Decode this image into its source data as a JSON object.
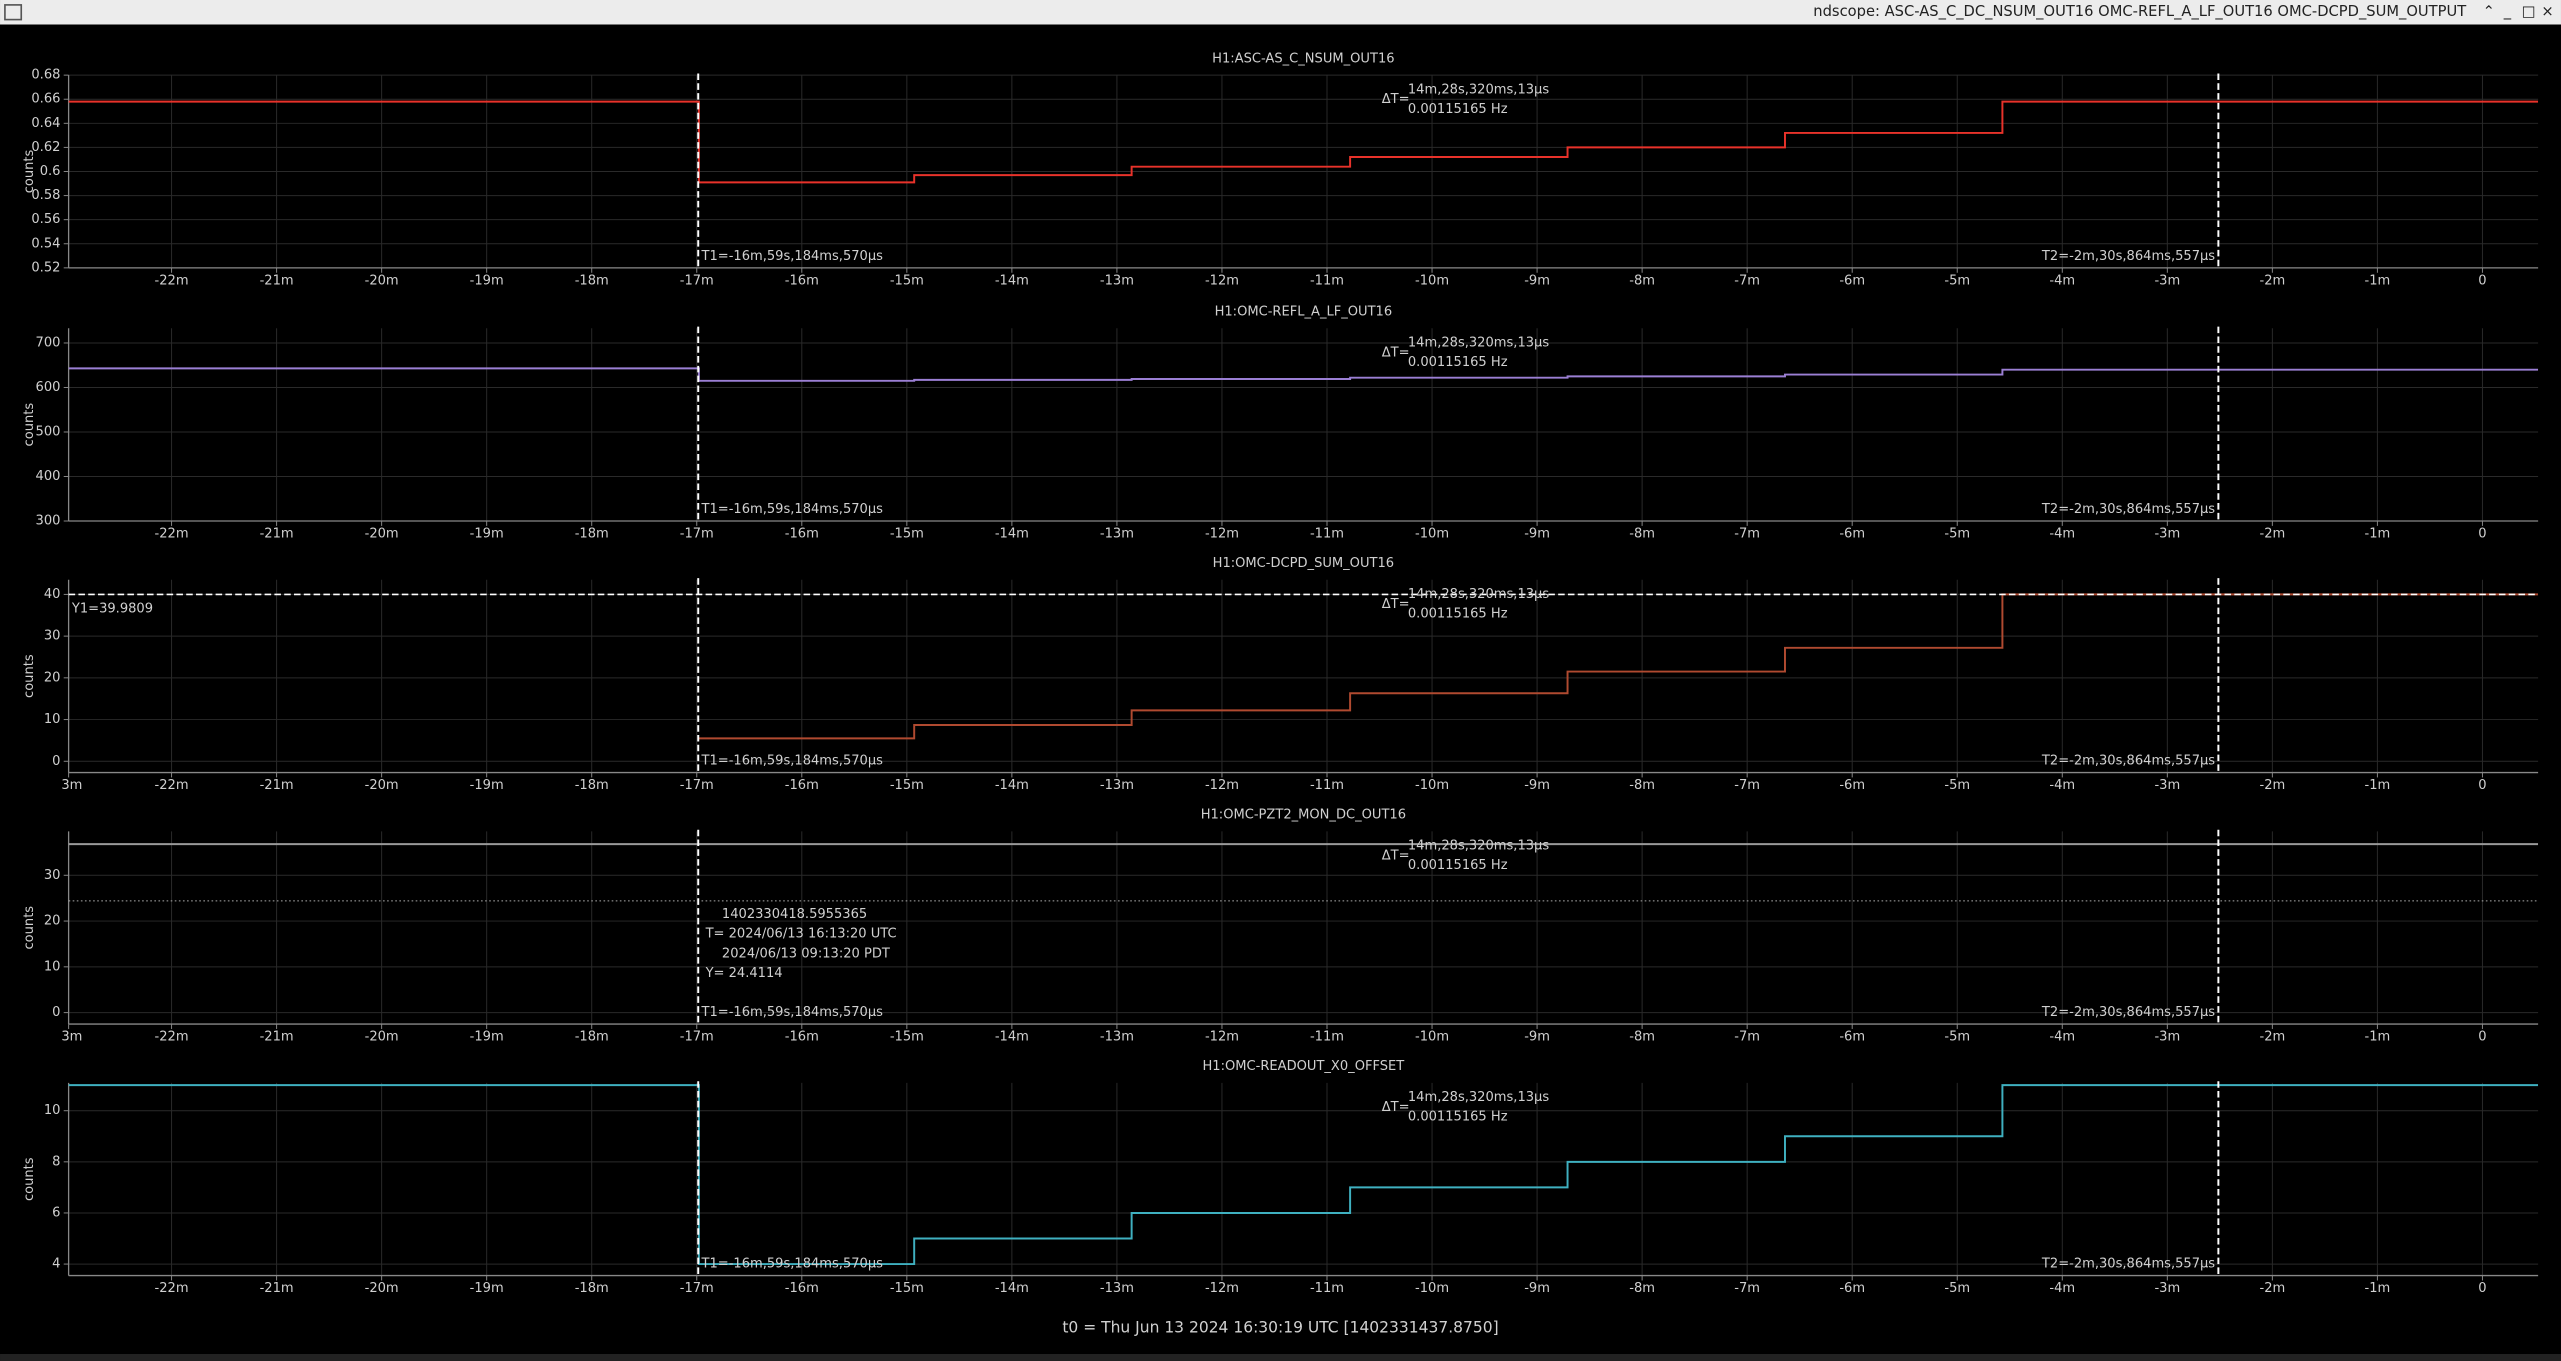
{
  "window_title": "ndscope: ASC-AS_C_DC_NSUM_OUT16 OMC-REFL_A_LF_OUT16 OMC-DCPD_SUM_OUTPUT",
  "t0_label": "t0 = Thu Jun 13 2024 16:30:19 UTC [1402331437.8750]",
  "chart_data": [
    {
      "type": "line",
      "title": "H1:ASC-AS_C_NSUM_OUT16",
      "ylabel": "counts",
      "color": "#e8322a",
      "grid": true,
      "xlim": [
        -22.98,
        0.53
      ],
      "xticks": [
        {
          "value": -22,
          "label": "-22m"
        },
        {
          "value": -21,
          "label": "-21m"
        },
        {
          "value": -20,
          "label": "-20m"
        },
        {
          "value": -19,
          "label": "-19m"
        },
        {
          "value": -18,
          "label": "-18m"
        },
        {
          "value": -17,
          "label": "-17m"
        },
        {
          "value": -16,
          "label": "-16m"
        },
        {
          "value": -15,
          "label": "-15m"
        },
        {
          "value": -14,
          "label": "-14m"
        },
        {
          "value": -13,
          "label": "-13m"
        },
        {
          "value": -12,
          "label": "-12m"
        },
        {
          "value": -11,
          "label": "-11m"
        },
        {
          "value": -10,
          "label": "-10m"
        },
        {
          "value": -9,
          "label": "-9m"
        },
        {
          "value": -8,
          "label": "-8m"
        },
        {
          "value": -7,
          "label": "-7m"
        },
        {
          "value": -6,
          "label": "-6m"
        },
        {
          "value": -5,
          "label": "-5m"
        },
        {
          "value": -4,
          "label": "-4m"
        },
        {
          "value": -3,
          "label": "-3m"
        },
        {
          "value": -2,
          "label": "-2m"
        },
        {
          "value": -1,
          "label": "-1m"
        },
        0
      ],
      "ylim": [
        0.52,
        0.68
      ],
      "yticks": [
        0.52,
        0.54,
        0.56,
        0.58,
        0.6,
        0.62,
        0.64,
        0.66,
        0.68
      ],
      "x": [
        -22.98,
        -16.98,
        -16.98,
        -14.93,
        -14.93,
        -12.86,
        -12.86,
        -10.78,
        -10.78,
        -8.71,
        -8.71,
        -6.64,
        -6.64,
        -4.57,
        -4.57,
        0.53
      ],
      "values": [
        0.658,
        0.658,
        0.591,
        0.591,
        0.597,
        0.597,
        0.604,
        0.604,
        0.612,
        0.612,
        0.62,
        0.62,
        0.632,
        0.632,
        0.658,
        0.658
      ],
      "cursors": {
        "t1": -16.986,
        "t1_label": "T1=-16m,59s,184ms,570μs",
        "t2": -2.514,
        "t2_label": "T2=-2m,30s,864ms,557μs",
        "delta_label": "ΔT=",
        "delta_time": "14m,28s,320ms,13μs",
        "delta_freq": "0.00115165 Hz"
      }
    },
    {
      "type": "line",
      "title": "H1:OMC-REFL_A_LF_OUT16",
      "ylabel": "counts",
      "color": "#9b7fd4",
      "grid": true,
      "xlim": [
        -22.98,
        0.53
      ],
      "xticks": [
        {
          "value": -22,
          "label": "-22m"
        },
        {
          "value": -21,
          "label": "-21m"
        },
        {
          "value": -20,
          "label": "-20m"
        },
        {
          "value": -19,
          "label": "-19m"
        },
        {
          "value": -18,
          "label": "-18m"
        },
        {
          "value": -17,
          "label": "-17m"
        },
        {
          "value": -16,
          "label": "-16m"
        },
        {
          "value": -15,
          "label": "-15m"
        },
        {
          "value": -14,
          "label": "-14m"
        },
        {
          "value": -13,
          "label": "-13m"
        },
        {
          "value": -12,
          "label": "-12m"
        },
        {
          "value": -11,
          "label": "-11m"
        },
        {
          "value": -10,
          "label": "-10m"
        },
        {
          "value": -9,
          "label": "-9m"
        },
        {
          "value": -8,
          "label": "-8m"
        },
        {
          "value": -7,
          "label": "-7m"
        },
        {
          "value": -6,
          "label": "-6m"
        },
        {
          "value": -5,
          "label": "-5m"
        },
        {
          "value": -4,
          "label": "-4m"
        },
        {
          "value": -3,
          "label": "-3m"
        },
        {
          "value": -2,
          "label": "-2m"
        },
        {
          "value": -1,
          "label": "-1m"
        },
        0
      ],
      "ylim": [
        300,
        733
      ],
      "yticks": [
        300,
        400,
        500,
        600,
        700
      ],
      "x": [
        -22.98,
        -16.98,
        -16.98,
        -14.93,
        -14.93,
        -12.86,
        -12.86,
        -10.78,
        -10.78,
        -8.71,
        -8.71,
        -6.64,
        -6.64,
        -4.57,
        -4.57,
        0.53
      ],
      "values": [
        643,
        643,
        615,
        615,
        617,
        617,
        619,
        619,
        622,
        622,
        625,
        625,
        629,
        629,
        640,
        640
      ],
      "cursors": {
        "t1": -16.986,
        "t1_label": "T1=-16m,59s,184ms,570μs",
        "t2": -2.514,
        "t2_label": "T2=-2m,30s,864ms,557μs",
        "delta_label": "ΔT=",
        "delta_time": "14m,28s,320ms,13μs",
        "delta_freq": "0.00115165 Hz"
      }
    },
    {
      "type": "line",
      "title": "H1:OMC-DCPD_SUM_OUT16",
      "ylabel": "counts",
      "color": "#b04a30",
      "grid": true,
      "xlim": [
        -22.98,
        0.53
      ],
      "xticks": [
        {
          "value": -23,
          "label": "3m"
        },
        {
          "value": -22,
          "label": "-22m"
        },
        {
          "value": -21,
          "label": "-21m"
        },
        {
          "value": -20,
          "label": "-20m"
        },
        {
          "value": -19,
          "label": "-19m"
        },
        {
          "value": -18,
          "label": "-18m"
        },
        {
          "value": -17,
          "label": "-17m"
        },
        {
          "value": -16,
          "label": "-16m"
        },
        {
          "value": -15,
          "label": "-15m"
        },
        {
          "value": -14,
          "label": "-14m"
        },
        {
          "value": -13,
          "label": "-13m"
        },
        {
          "value": -12,
          "label": "-12m"
        },
        {
          "value": -11,
          "label": "-11m"
        },
        {
          "value": -10,
          "label": "-10m"
        },
        {
          "value": -9,
          "label": "-9m"
        },
        {
          "value": -8,
          "label": "-8m"
        },
        {
          "value": -7,
          "label": "-7m"
        },
        {
          "value": -6,
          "label": "-6m"
        },
        {
          "value": -5,
          "label": "-5m"
        },
        {
          "value": -4,
          "label": "-4m"
        },
        {
          "value": -3,
          "label": "-3m"
        },
        {
          "value": -2,
          "label": "-2m"
        },
        {
          "value": -1,
          "label": "-1m"
        },
        0
      ],
      "ylim": [
        -2.7,
        43.5
      ],
      "yticks": [
        0,
        10,
        20,
        30,
        40
      ],
      "x": [
        -16.98,
        -14.93,
        -14.93,
        -12.86,
        -12.86,
        -10.78,
        -10.78,
        -8.71,
        -8.71,
        -6.64,
        -6.64,
        -4.57,
        -4.57,
        0.53
      ],
      "values": [
        5.5,
        5.5,
        8.7,
        8.7,
        12.2,
        12.2,
        16.3,
        16.3,
        21.5,
        21.5,
        27.2,
        27.2,
        40,
        40
      ],
      "y1": 39.9809,
      "y1_label": "Y1=39.9809",
      "cursors": {
        "t1": -16.986,
        "t1_label": "T1=-16m,59s,184ms,570μs",
        "t2": -2.514,
        "t2_label": "T2=-2m,30s,864ms,557μs",
        "delta_label": "ΔT=",
        "delta_time": "14m,28s,320ms,13μs",
        "delta_freq": "0.00115165 Hz"
      }
    },
    {
      "type": "line",
      "title": "H1:OMC-PZT2_MON_DC_OUT16",
      "ylabel": "counts",
      "color": "#9a9a9a",
      "grid": true,
      "xlim": [
        -22.98,
        0.53
      ],
      "xticks": [
        {
          "value": -23,
          "label": "3m"
        },
        {
          "value": -22,
          "label": "-22m"
        },
        {
          "value": -21,
          "label": "-21m"
        },
        {
          "value": -20,
          "label": "-20m"
        },
        {
          "value": -19,
          "label": "-19m"
        },
        {
          "value": -18,
          "label": "-18m"
        },
        {
          "value": -17,
          "label": "-17m"
        },
        {
          "value": -16,
          "label": "-16m"
        },
        {
          "value": -15,
          "label": "-15m"
        },
        {
          "value": -14,
          "label": "-14m"
        },
        {
          "value": -13,
          "label": "-13m"
        },
        {
          "value": -12,
          "label": "-12m"
        },
        {
          "value": -11,
          "label": "-11m"
        },
        {
          "value": -10,
          "label": "-10m"
        },
        {
          "value": -9,
          "label": "-9m"
        },
        {
          "value": -8,
          "label": "-8m"
        },
        {
          "value": -7,
          "label": "-7m"
        },
        {
          "value": -6,
          "label": "-6m"
        },
        {
          "value": -5,
          "label": "-5m"
        },
        {
          "value": -4,
          "label": "-4m"
        },
        {
          "value": -3,
          "label": "-3m"
        },
        {
          "value": -2,
          "label": "-2m"
        },
        {
          "value": -1,
          "label": "-1m"
        },
        0
      ],
      "ylim": [
        -2.5,
        39.6
      ],
      "yticks": [
        0,
        10,
        20,
        30
      ],
      "x": [
        -22.98,
        0.53
      ],
      "values": [
        36.8,
        36.8
      ],
      "crosshair": {
        "y": 24.4114,
        "gps": "1402330418.5955365",
        "utc": "T= 2024/06/13 16:13:20 UTC",
        "local": "2024/06/13 09:13:20 PDT",
        "y_label": "Y= 24.4114"
      },
      "cursors": {
        "t1": -16.986,
        "t1_label": "T1=-16m,59s,184ms,570μs",
        "t2": -2.514,
        "t2_label": "T2=-2m,30s,864ms,557μs",
        "delta_label": "ΔT=",
        "delta_time": "14m,28s,320ms,13μs",
        "delta_freq": "0.00115165 Hz"
      }
    },
    {
      "type": "line",
      "title": "H1:OMC-READOUT_X0_OFFSET",
      "ylabel": "counts",
      "color": "#3fb0c0",
      "grid": true,
      "xlim": [
        -22.98,
        0.53
      ],
      "xticks": [
        {
          "value": -22,
          "label": "-22m"
        },
        {
          "value": -21,
          "label": "-21m"
        },
        {
          "value": -20,
          "label": "-20m"
        },
        {
          "value": -19,
          "label": "-19m"
        },
        {
          "value": -18,
          "label": "-18m"
        },
        {
          "value": -17,
          "label": "-17m"
        },
        {
          "value": -16,
          "label": "-16m"
        },
        {
          "value": -15,
          "label": "-15m"
        },
        {
          "value": -14,
          "label": "-14m"
        },
        {
          "value": -13,
          "label": "-13m"
        },
        {
          "value": -12,
          "label": "-12m"
        },
        {
          "value": -11,
          "label": "-11m"
        },
        {
          "value": -10,
          "label": "-10m"
        },
        {
          "value": -9,
          "label": "-9m"
        },
        {
          "value": -8,
          "label": "-8m"
        },
        {
          "value": -7,
          "label": "-7m"
        },
        {
          "value": -6,
          "label": "-6m"
        },
        {
          "value": -5,
          "label": "-5m"
        },
        {
          "value": -4,
          "label": "-4m"
        },
        {
          "value": -3,
          "label": "-3m"
        },
        {
          "value": -2,
          "label": "-2m"
        },
        {
          "value": -1,
          "label": "-1m"
        },
        0
      ],
      "ylim": [
        3.55,
        11.09
      ],
      "yticks": [
        4,
        6,
        8,
        10
      ],
      "x": [
        -22.98,
        -16.98,
        -16.98,
        -14.93,
        -14.93,
        -12.86,
        -12.86,
        -10.78,
        -10.78,
        -8.71,
        -8.71,
        -6.64,
        -6.64,
        -4.57,
        -4.57,
        0.53
      ],
      "values": [
        11,
        11,
        4,
        4,
        5,
        5,
        6,
        6,
        7,
        7,
        8,
        8,
        9,
        9,
        11,
        11
      ],
      "cursors": {
        "t1": -16.986,
        "t1_label": "T1=-16m,59s,184ms,570μs",
        "t2": -2.514,
        "t2_label": "T2=-2m,30s,864ms,557μs",
        "delta_label": "ΔT=",
        "delta_time": "14m,28s,320ms,13μs",
        "delta_freq": "0.00115165 Hz"
      }
    }
  ]
}
